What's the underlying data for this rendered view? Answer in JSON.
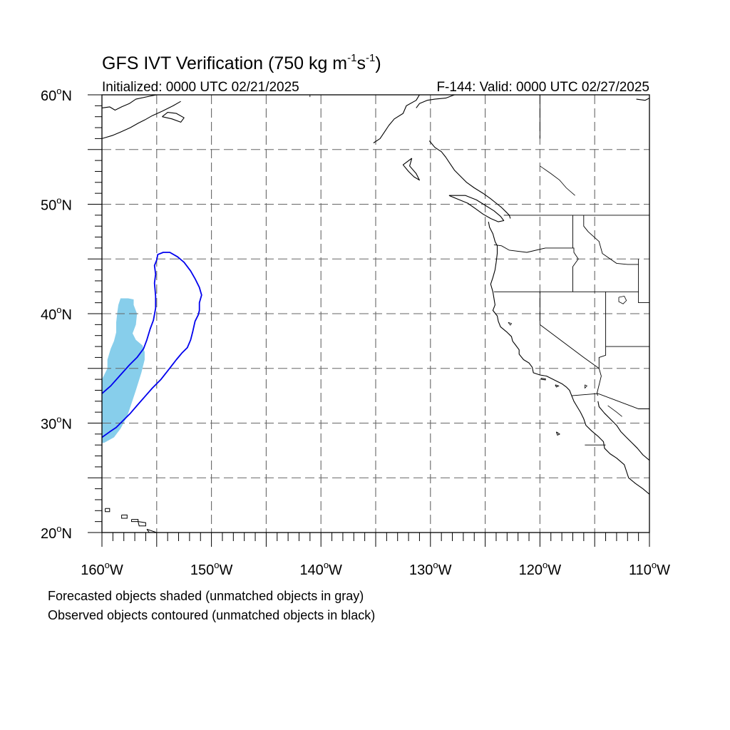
{
  "title": {
    "text": "GFS IVT Verification (750 kg m",
    "exp1": "-1",
    "mid": "s",
    "exp2": "-1",
    "end": ")"
  },
  "subtitle_left": "Initialized: 0000 UTC 02/21/2025",
  "subtitle_right": "F-144: Valid: 0000 UTC 02/27/2025",
  "map_extent": {
    "lon": [
      -160,
      -110
    ],
    "lat": [
      20,
      60
    ]
  },
  "lat_labels": [
    {
      "value": 60,
      "text": "60"
    },
    {
      "value": 50,
      "text": "50"
    },
    {
      "value": 40,
      "text": "40"
    },
    {
      "value": 30,
      "text": "30"
    },
    {
      "value": 20,
      "text": "20"
    }
  ],
  "lat_suffix": "N",
  "lon_labels": [
    {
      "value": -160,
      "text": "160"
    },
    {
      "value": -150,
      "text": "150"
    },
    {
      "value": -140,
      "text": "140"
    },
    {
      "value": -130,
      "text": "130"
    },
    {
      "value": -120,
      "text": "120"
    },
    {
      "value": -110,
      "text": "110"
    }
  ],
  "lon_suffix": "W",
  "degree_symbol": "o",
  "grid_lats": [
    25,
    30,
    35,
    40,
    45,
    50,
    55
  ],
  "grid_lons": [
    -155,
    -150,
    -145,
    -140,
    -135,
    -130,
    -125,
    -120,
    -115
  ],
  "colors": {
    "forecast_fill": "#87ceeb",
    "observed_contour": "#0000ee",
    "grid": "#666666",
    "coast": "#000000"
  },
  "forecast_object": [
    [
      -159.8,
      28.2
    ],
    [
      -158.9,
      28.7
    ],
    [
      -158.3,
      29.5
    ],
    [
      -157.7,
      30.6
    ],
    [
      -157.3,
      31.8
    ],
    [
      -156.9,
      33.0
    ],
    [
      -156.4,
      34.6
    ],
    [
      -156.1,
      35.8
    ],
    [
      -156.1,
      36.5
    ],
    [
      -156.3,
      37.1
    ],
    [
      -156.9,
      37.6
    ],
    [
      -157.2,
      38.2
    ],
    [
      -156.9,
      39.0
    ],
    [
      -156.8,
      40.0
    ],
    [
      -157.1,
      40.8
    ],
    [
      -157.1,
      41.3
    ],
    [
      -157.6,
      41.4
    ],
    [
      -158.3,
      41.4
    ],
    [
      -158.5,
      40.8
    ],
    [
      -158.6,
      40.1
    ],
    [
      -158.7,
      39.2
    ],
    [
      -158.7,
      38.3
    ],
    [
      -158.9,
      37.5
    ],
    [
      -159.2,
      36.8
    ],
    [
      -159.5,
      35.8
    ],
    [
      -159.5,
      35.0
    ],
    [
      -159.8,
      34.4
    ],
    [
      -160.0,
      34.0
    ],
    [
      -160.0,
      28.2
    ]
  ],
  "observed_object": [
    [
      -160.0,
      32.7
    ],
    [
      -159.2,
      33.4
    ],
    [
      -158.4,
      34.3
    ],
    [
      -157.5,
      35.3
    ],
    [
      -156.8,
      36.0
    ],
    [
      -156.2,
      36.8
    ],
    [
      -155.9,
      37.6
    ],
    [
      -155.6,
      38.6
    ],
    [
      -155.3,
      39.4
    ],
    [
      -155.1,
      40.5
    ],
    [
      -155.1,
      41.6
    ],
    [
      -155.2,
      42.8
    ],
    [
      -155.1,
      43.6
    ],
    [
      -155.2,
      44.4
    ],
    [
      -155.0,
      44.9
    ],
    [
      -154.9,
      45.4
    ],
    [
      -154.4,
      45.6
    ],
    [
      -153.8,
      45.6
    ],
    [
      -153.1,
      45.2
    ],
    [
      -152.5,
      44.7
    ],
    [
      -151.9,
      43.9
    ],
    [
      -151.5,
      43.2
    ],
    [
      -151.1,
      42.4
    ],
    [
      -150.9,
      41.7
    ],
    [
      -151.1,
      41.0
    ],
    [
      -151.1,
      40.3
    ],
    [
      -151.2,
      39.9
    ],
    [
      -151.5,
      39.3
    ],
    [
      -151.7,
      38.4
    ],
    [
      -151.9,
      37.6
    ],
    [
      -152.2,
      36.9
    ],
    [
      -152.7,
      36.4
    ],
    [
      -153.2,
      35.8
    ],
    [
      -153.9,
      34.9
    ],
    [
      -154.6,
      34.0
    ],
    [
      -155.4,
      33.2
    ],
    [
      -156.1,
      32.4
    ],
    [
      -156.8,
      31.6
    ],
    [
      -157.4,
      30.9
    ],
    [
      -158.1,
      30.2
    ],
    [
      -158.7,
      29.6
    ],
    [
      -159.3,
      29.2
    ],
    [
      -160.0,
      28.7
    ]
  ],
  "coastlines": [
    [
      [
        -131.0,
        60.0
      ],
      [
        -131.3,
        59.5
      ],
      [
        -132.2,
        59.0
      ],
      [
        -132.5,
        58.3
      ],
      [
        -133.3,
        57.8
      ],
      [
        -133.8,
        57.2
      ],
      [
        -134.2,
        56.6
      ],
      [
        -134.6,
        56.0
      ],
      [
        -135.2,
        55.6
      ]
    ],
    [
      [
        -127.8,
        60.0
      ],
      [
        -128.6,
        59.7
      ],
      [
        -129.6,
        59.6
      ],
      [
        -130.3,
        59.5
      ],
      [
        -131.0,
        59.2
      ],
      [
        -131.3,
        58.8
      ]
    ],
    [
      [
        -130.1,
        55.8
      ],
      [
        -129.6,
        55.2
      ],
      [
        -129.0,
        54.8
      ],
      [
        -128.6,
        54.3
      ],
      [
        -128.2,
        53.7
      ],
      [
        -127.8,
        53.1
      ],
      [
        -127.2,
        52.5
      ],
      [
        -126.7,
        52.0
      ],
      [
        -126.0,
        51.5
      ],
      [
        -125.2,
        51.0
      ],
      [
        -124.5,
        50.5
      ],
      [
        -124.0,
        50.1
      ],
      [
        -123.5,
        49.7
      ],
      [
        -123.1,
        49.3
      ],
      [
        -122.8,
        49.0
      ],
      [
        -122.7,
        48.7
      ]
    ],
    [
      [
        -131.7,
        54.2
      ],
      [
        -131.9,
        53.5
      ],
      [
        -131.3,
        52.8
      ],
      [
        -131.0,
        52.2
      ],
      [
        -131.5,
        52.5
      ],
      [
        -132.0,
        53.0
      ],
      [
        -132.5,
        53.6
      ],
      [
        -131.7,
        54.2
      ]
    ],
    [
      [
        -128.3,
        50.8
      ],
      [
        -127.6,
        50.5
      ],
      [
        -126.6,
        50.1
      ],
      [
        -125.9,
        49.6
      ],
      [
        -125.2,
        49.1
      ],
      [
        -124.5,
        48.7
      ],
      [
        -123.8,
        48.4
      ],
      [
        -123.3,
        48.5
      ],
      [
        -123.6,
        48.9
      ],
      [
        -124.2,
        49.4
      ],
      [
        -125.0,
        49.9
      ],
      [
        -125.8,
        50.4
      ],
      [
        -126.8,
        50.8
      ],
      [
        -128.3,
        50.8
      ]
    ],
    [
      [
        -124.7,
        48.4
      ],
      [
        -124.6,
        47.9
      ],
      [
        -124.3,
        47.3
      ],
      [
        -124.1,
        46.6
      ],
      [
        -123.9,
        46.2
      ],
      [
        -123.9,
        45.5
      ],
      [
        -124.0,
        44.7
      ],
      [
        -124.1,
        44.0
      ],
      [
        -124.3,
        43.3
      ],
      [
        -124.5,
        42.7
      ],
      [
        -124.3,
        42.0
      ],
      [
        -124.2,
        41.4
      ],
      [
        -124.1,
        40.8
      ],
      [
        -124.3,
        40.3
      ],
      [
        -123.9,
        39.8
      ],
      [
        -123.8,
        39.3
      ],
      [
        -123.6,
        38.8
      ],
      [
        -123.0,
        38.3
      ],
      [
        -122.6,
        37.9
      ],
      [
        -122.5,
        37.5
      ],
      [
        -122.2,
        37.1
      ],
      [
        -121.9,
        36.7
      ],
      [
        -121.9,
        36.3
      ],
      [
        -121.5,
        35.8
      ],
      [
        -121.0,
        35.5
      ],
      [
        -120.7,
        35.1
      ],
      [
        -120.6,
        34.6
      ],
      [
        -120.0,
        34.4
      ],
      [
        -119.4,
        34.3
      ],
      [
        -118.8,
        34.0
      ],
      [
        -118.4,
        33.8
      ],
      [
        -118.0,
        33.6
      ],
      [
        -117.6,
        33.3
      ],
      [
        -117.3,
        33.0
      ],
      [
        -117.1,
        32.5
      ],
      [
        -116.9,
        32.0
      ],
      [
        -116.6,
        31.5
      ],
      [
        -116.3,
        31.0
      ],
      [
        -116.0,
        30.4
      ],
      [
        -115.8,
        29.8
      ],
      [
        -115.3,
        29.3
      ],
      [
        -114.7,
        28.8
      ],
      [
        -114.2,
        28.3
      ],
      [
        -114.1,
        27.7
      ],
      [
        -113.6,
        27.2
      ],
      [
        -113.0,
        26.8
      ],
      [
        -112.3,
        26.2
      ],
      [
        -112.1,
        25.6
      ],
      [
        -111.9,
        25.0
      ],
      [
        -111.3,
        24.5
      ],
      [
        -110.6,
        24.0
      ],
      [
        -110.0,
        23.5
      ]
    ],
    [
      [
        -114.7,
        32.0
      ],
      [
        -114.6,
        31.5
      ],
      [
        -114.1,
        30.9
      ],
      [
        -113.6,
        30.4
      ],
      [
        -113.0,
        29.8
      ],
      [
        -112.6,
        29.2
      ],
      [
        -112.1,
        28.7
      ],
      [
        -111.6,
        28.2
      ],
      [
        -111.1,
        27.7
      ],
      [
        -110.6,
        27.1
      ],
      [
        -110.0,
        26.6
      ]
    ],
    [
      [
        -160.0,
        58.8
      ],
      [
        -159.3,
        58.9
      ],
      [
        -158.8,
        58.6
      ],
      [
        -158.2,
        58.9
      ],
      [
        -157.5,
        59.2
      ],
      [
        -156.9,
        59.6
      ],
      [
        -155.5,
        59.9
      ],
      [
        -155.0,
        60.0
      ]
    ],
    [
      [
        -160.0,
        56.0
      ],
      [
        -159.0,
        56.3
      ],
      [
        -158.3,
        56.6
      ],
      [
        -157.4,
        57.0
      ],
      [
        -156.7,
        57.4
      ],
      [
        -156.1,
        57.7
      ],
      [
        -155.4,
        58.1
      ],
      [
        -154.5,
        58.5
      ],
      [
        -153.5,
        59.0
      ],
      [
        -152.8,
        59.4
      ]
    ],
    [
      [
        -154.5,
        58.0
      ],
      [
        -153.6,
        57.8
      ],
      [
        -152.8,
        57.5
      ],
      [
        -152.5,
        57.9
      ],
      [
        -153.2,
        58.3
      ],
      [
        -154.0,
        58.4
      ],
      [
        -154.5,
        58.0
      ]
    ],
    [
      [
        -110.0,
        59.7
      ],
      [
        -110.4,
        59.5
      ],
      [
        -111.2,
        59.6
      ]
    ]
  ],
  "islands": [
    [
      [
        -159.7,
        22.2
      ],
      [
        -159.3,
        22.2
      ],
      [
        -159.3,
        21.9
      ],
      [
        -159.7,
        21.9
      ],
      [
        -159.7,
        22.2
      ]
    ],
    [
      [
        -158.2,
        21.6
      ],
      [
        -157.7,
        21.6
      ],
      [
        -157.7,
        21.3
      ],
      [
        -158.2,
        21.3
      ],
      [
        -158.2,
        21.6
      ]
    ],
    [
      [
        -157.3,
        21.2
      ],
      [
        -156.7,
        21.2
      ],
      [
        -156.7,
        21.0
      ],
      [
        -157.3,
        21.0
      ],
      [
        -157.3,
        21.2
      ]
    ],
    [
      [
        -156.7,
        21.0
      ],
      [
        -156.0,
        20.9
      ],
      [
        -156.0,
        20.6
      ],
      [
        -156.6,
        20.6
      ],
      [
        -156.7,
        21.0
      ]
    ],
    [
      [
        -155.9,
        20.3
      ],
      [
        -155.0,
        20.0
      ],
      [
        -154.9,
        19.8
      ],
      [
        -155.6,
        19.9
      ],
      [
        -155.9,
        20.3
      ]
    ],
    [
      [
        -119.9,
        34.1
      ],
      [
        -119.5,
        34.05
      ],
      [
        -119.5,
        33.95
      ],
      [
        -119.9,
        34.0
      ],
      [
        -119.9,
        34.1
      ]
    ],
    [
      [
        -118.6,
        33.5
      ],
      [
        -118.3,
        33.4
      ],
      [
        -118.5,
        33.3
      ],
      [
        -118.6,
        33.5
      ]
    ],
    [
      [
        -118.5,
        29.2
      ],
      [
        -118.2,
        29.0
      ],
      [
        -118.4,
        28.9
      ],
      [
        -118.5,
        29.2
      ]
    ]
  ],
  "borders": [
    [
      [
        -123.3,
        49.0
      ],
      [
        -110.0,
        49.0
      ]
    ],
    [
      [
        -141.0,
        60.0
      ],
      [
        -141.0,
        59.8
      ]
    ],
    [
      [
        -124.2,
        46.3
      ],
      [
        -123.5,
        46.2
      ],
      [
        -122.8,
        45.8
      ],
      [
        -121.2,
        45.6
      ],
      [
        -119.5,
        46.0
      ],
      [
        -116.9,
        46.0
      ],
      [
        -116.9,
        45.6
      ],
      [
        -116.5,
        45.0
      ],
      [
        -117.0,
        44.3
      ],
      [
        -117.0,
        42.0
      ]
    ],
    [
      [
        -124.2,
        42.0
      ],
      [
        -111.0,
        42.0
      ]
    ],
    [
      [
        -117.0,
        49.0
      ],
      [
        -117.0,
        46.0
      ]
    ],
    [
      [
        -116.0,
        49.0
      ],
      [
        -116.0,
        48.0
      ],
      [
        -115.6,
        47.5
      ],
      [
        -114.6,
        46.6
      ],
      [
        -114.3,
        45.5
      ],
      [
        -113.0,
        44.6
      ],
      [
        -112.0,
        44.5
      ],
      [
        -111.0,
        44.5
      ]
    ],
    [
      [
        -111.0,
        45.0
      ],
      [
        -111.0,
        41.0
      ],
      [
        -110.0,
        41.0
      ]
    ],
    [
      [
        -120.0,
        42.0
      ],
      [
        -120.0,
        39.0
      ],
      [
        -118.0,
        37.5
      ],
      [
        -116.0,
        36.0
      ],
      [
        -114.6,
        35.0
      ]
    ],
    [
      [
        -114.0,
        42.0
      ],
      [
        -114.0,
        36.2
      ],
      [
        -114.6,
        36.0
      ],
      [
        -114.6,
        35.0
      ],
      [
        -114.4,
        34.3
      ],
      [
        -114.8,
        32.7
      ],
      [
        -114.7,
        32.5
      ]
    ],
    [
      [
        -114.0,
        37.0
      ],
      [
        -110.0,
        37.0
      ]
    ],
    [
      [
        -117.1,
        32.5
      ],
      [
        -114.7,
        32.7
      ],
      [
        -111.0,
        31.3
      ],
      [
        -110.0,
        31.3
      ]
    ],
    [
      [
        -120.0,
        60.0
      ],
      [
        -120.0,
        56.0
      ]
    ],
    [
      [
        -115.9,
        28.0
      ],
      [
        -114.0,
        28.0
      ]
    ]
  ],
  "rivers": [
    [
      [
        -120.0,
        53.5
      ],
      [
        -119.0,
        52.8
      ],
      [
        -118.2,
        52.2
      ],
      [
        -117.6,
        51.5
      ],
      [
        -116.8,
        50.8
      ]
    ],
    [
      [
        -113.8,
        31.6
      ],
      [
        -113.0,
        31.0
      ],
      [
        -112.5,
        30.6
      ]
    ]
  ],
  "lakes": [
    [
      [
        -112.8,
        41.5
      ],
      [
        -112.3,
        41.6
      ],
      [
        -112.1,
        41.2
      ],
      [
        -112.4,
        40.9
      ],
      [
        -112.8,
        41.1
      ],
      [
        -112.8,
        41.5
      ]
    ],
    [
      [
        -122.9,
        39.2
      ],
      [
        -122.6,
        39.1
      ],
      [
        -122.7,
        38.95
      ],
      [
        -122.9,
        39.2
      ]
    ],
    [
      [
        -115.9,
        33.5
      ],
      [
        -115.7,
        33.4
      ],
      [
        -115.9,
        33.2
      ],
      [
        -115.9,
        33.5
      ]
    ]
  ],
  "footnotes": [
    "Forecasted objects shaded (unmatched objects in gray)",
    "Observed objects contoured (unmatched objects in black)"
  ]
}
